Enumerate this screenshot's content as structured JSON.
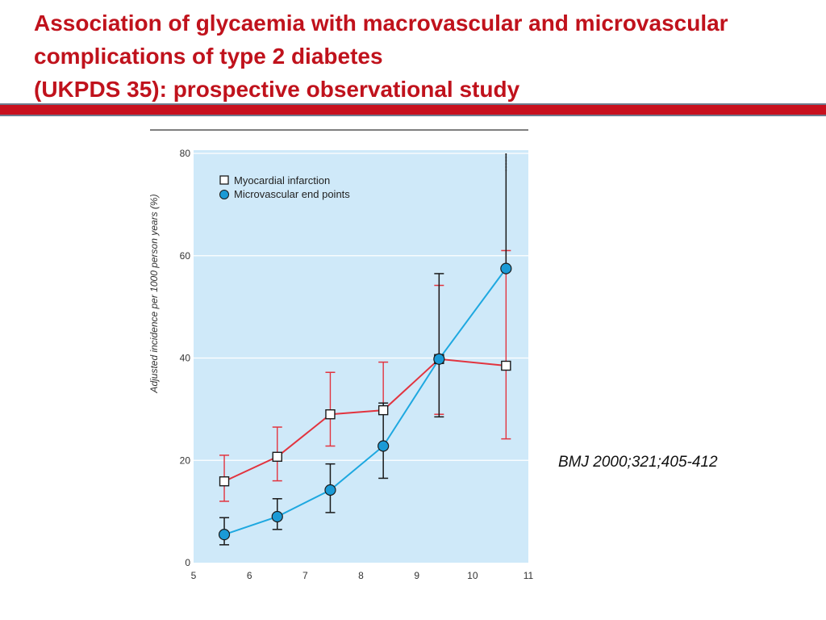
{
  "slide": {
    "title_lines": [
      "Association of glycaemia with macrovascular and microvascular",
      "complications of type 2 diabetes",
      "(UKPDS 35): prospective observational study"
    ],
    "citation": "BMJ 2000;321;405-412"
  },
  "colors": {
    "title": "#c0121c",
    "bar": "#c8101e",
    "plot_bg": "#cfe9f9",
    "mi_line": "#e2343f",
    "micro_line": "#1ea8e0",
    "micro_marker": "#1a9ad6"
  },
  "chart_data": {
    "type": "line",
    "title": "",
    "xlabel": "",
    "ylabel": "Adjusted incidence per 1000 person years (%)",
    "xlim": [
      5,
      11
    ],
    "ylim": [
      0,
      80
    ],
    "x_ticks": [
      "5",
      "6",
      "7",
      "8",
      "9",
      "10",
      "11"
    ],
    "y_ticks": [
      "0",
      "20",
      "40",
      "60",
      "80"
    ],
    "grid": "horizontal",
    "legend_position": "top-left",
    "series": [
      {
        "name": "Myocardial infarction",
        "marker": "open-square",
        "color": "#e2343f",
        "points": [
          {
            "x": 5.55,
            "y": 15.9,
            "lo": 12.0,
            "hi": 21.0
          },
          {
            "x": 6.5,
            "y": 20.7,
            "lo": 16.0,
            "hi": 26.5
          },
          {
            "x": 7.45,
            "y": 29.0,
            "lo": 22.8,
            "hi": 37.2
          },
          {
            "x": 8.4,
            "y": 29.8,
            "lo": 29.8,
            "hi": 39.2
          },
          {
            "x": 9.4,
            "y": 39.8,
            "lo": 29.0,
            "hi": 54.2
          },
          {
            "x": 10.6,
            "y": 38.5,
            "lo": 24.2,
            "hi": 61.0
          }
        ]
      },
      {
        "name": "Microvascular end points",
        "marker": "filled-circle",
        "color": "#1ea8e0",
        "points": [
          {
            "x": 5.55,
            "y": 5.5,
            "lo": 3.5,
            "hi": 8.8
          },
          {
            "x": 6.5,
            "y": 9.0,
            "lo": 6.5,
            "hi": 12.5
          },
          {
            "x": 7.45,
            "y": 14.2,
            "lo": 9.8,
            "hi": 19.3
          },
          {
            "x": 8.4,
            "y": 22.8,
            "lo": 16.5,
            "hi": 31.2
          },
          {
            "x": 9.4,
            "y": 39.8,
            "lo": 28.5,
            "hi": 56.5
          },
          {
            "x": 10.6,
            "y": 57.5,
            "lo": 57.5,
            "hi": 80.0,
            "hi_extends_beyond_axis": true
          }
        ]
      }
    ]
  }
}
